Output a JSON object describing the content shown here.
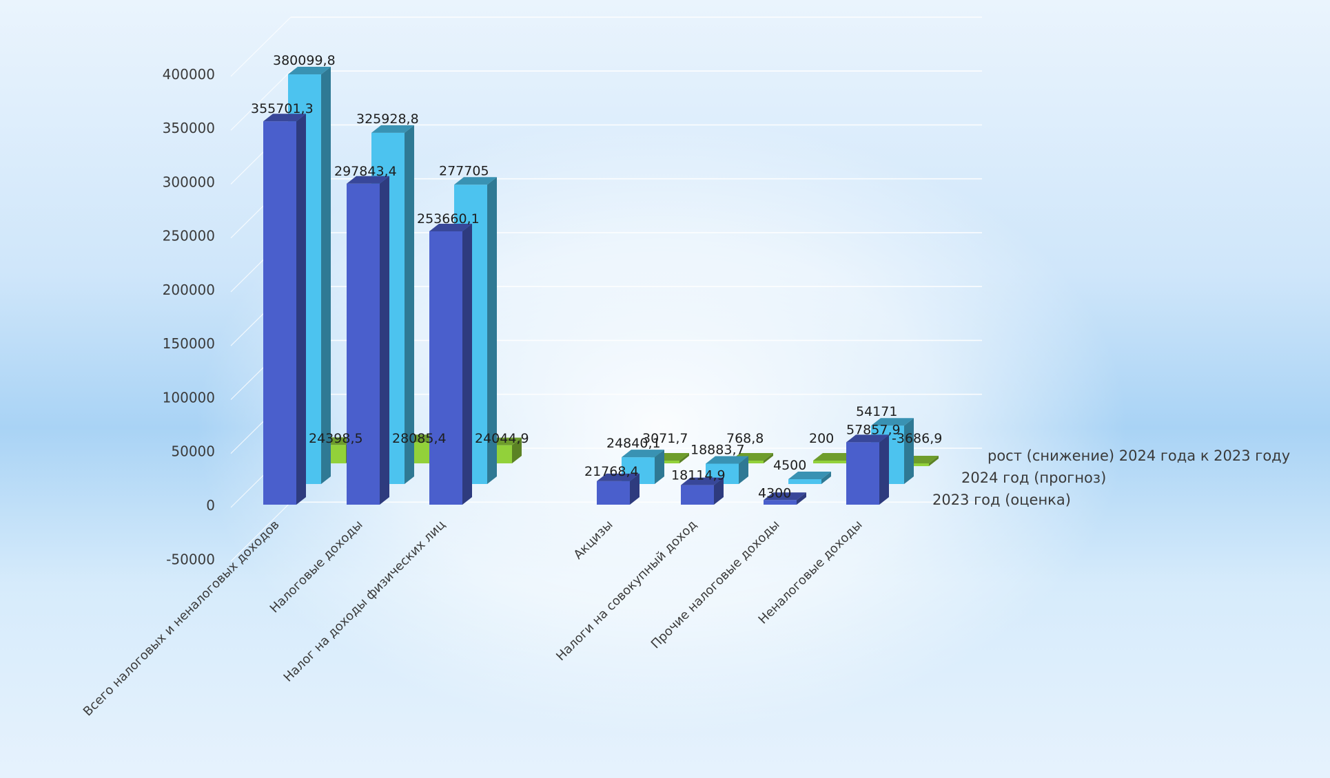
{
  "chart_data": {
    "type": "bar",
    "categories": [
      "Всего налоговых и неналоговых доходов",
      "Налоговые доходы",
      "Налог на доходы физических лиц",
      "Акцизы",
      "Налоги на совокупный доход",
      "Прочие налоговые доходы",
      "Неналоговые доходы"
    ],
    "series": [
      {
        "name": "2023 год  (оценка)",
        "color": "#4a5fcc",
        "values": [
          355701.3,
          297843.4,
          253660.1,
          21768.4,
          18114.9,
          4300,
          57857.9
        ],
        "labels": [
          "355701,3",
          "297843,4",
          "253660,1",
          "21768,4",
          "18114,9",
          "4300",
          "57857,9"
        ]
      },
      {
        "name": "2024 год  (прогноз)",
        "color": "#4cc3ef",
        "values": [
          380099.8,
          325928.8,
          277705,
          24840.1,
          18883.7,
          4500,
          54171
        ],
        "labels": [
          "380099,8",
          "325928,8",
          "277705",
          "24840,1",
          "18883,7",
          "4500",
          "54171"
        ]
      },
      {
        "name": "рост  (снижение)  2024 года к 2023 году",
        "color": "#92d13a",
        "values": [
          24398.5,
          28085.4,
          24044.9,
          3071.7,
          768.8,
          200,
          -3686.9
        ],
        "labels": [
          "24398,5",
          "28085,4",
          "24044,9",
          "3071,7",
          "768,8",
          "200",
          "-3686,9"
        ]
      }
    ],
    "y_ticks": [
      "400000",
      "350000",
      "300000",
      "250000",
      "200000",
      "150000",
      "100000",
      "50000",
      "0",
      "-50000"
    ],
    "ylim": [
      -50000,
      400000
    ],
    "grid": true,
    "legend_position": "right",
    "style": "3d-column"
  }
}
